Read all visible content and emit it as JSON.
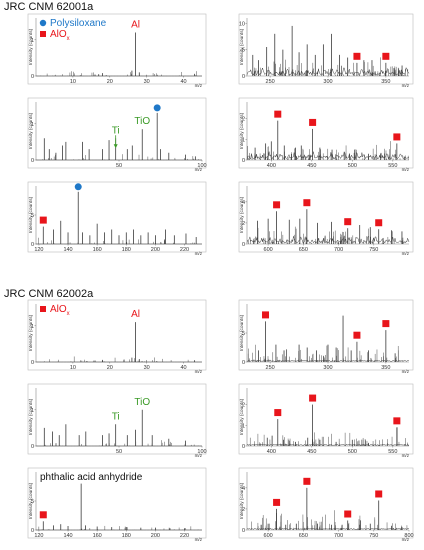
{
  "sections": [
    {
      "title": "JRC CNM 62001a"
    },
    {
      "title": "JRC CNM 62002a"
    }
  ],
  "colors": {
    "red": "#e8151b",
    "blue": "#1f78c8",
    "green": "#3a9a26",
    "line": "#3a3a3a"
  },
  "axis_text": {
    "ylabel": "Intensity (counts)",
    "xunit": "m/z"
  },
  "chart_data": [
    {
      "section": 0,
      "row": 0,
      "col": 0,
      "type": "line",
      "xlim": [
        0,
        45
      ],
      "ylim": [
        0,
        1.6
      ],
      "xticks": [
        10,
        20,
        30,
        40
      ],
      "yticks": [
        0,
        1
      ],
      "annotations": [
        {
          "text": "Polysiloxane",
          "color": "blue",
          "marker": "circle",
          "legend": true
        },
        {
          "text": "AlO",
          "sub": "x",
          "color": "red",
          "marker": "square",
          "legend": true
        },
        {
          "text": "Al",
          "color": "red",
          "x": 27
        }
      ],
      "peaks": [
        [
          27,
          1.2
        ],
        [
          26,
          0.15
        ],
        [
          28,
          0.1
        ],
        [
          16,
          0.04
        ],
        [
          17,
          0.05
        ],
        [
          18,
          0.08
        ],
        [
          43,
          0.06
        ],
        [
          12,
          0.02
        ]
      ]
    },
    {
      "section": 0,
      "row": 0,
      "col": 1,
      "type": "line",
      "xlim": [
        230,
        370
      ],
      "ylim": [
        0,
        11
      ],
      "xticks": [
        250,
        300,
        350
      ],
      "yticks": [
        0,
        5,
        10
      ],
      "annotations": [
        {
          "marker": "square",
          "color": "red",
          "x": 325
        },
        {
          "marker": "square",
          "color": "red",
          "x": 350
        }
      ],
      "peaks": [
        [
          235,
          4
        ],
        [
          240,
          3
        ],
        [
          247,
          5.5
        ],
        [
          254,
          8
        ],
        [
          261,
          5
        ],
        [
          269,
          9.5
        ],
        [
          275,
          4.5
        ],
        [
          282,
          6
        ],
        [
          289,
          4
        ],
        [
          296,
          6
        ],
        [
          303,
          8
        ],
        [
          310,
          4
        ],
        [
          317,
          3.5
        ],
        [
          325,
          2.5
        ],
        [
          331,
          3
        ],
        [
          338,
          3
        ],
        [
          350,
          2.5
        ],
        [
          357,
          1.5
        ],
        [
          364,
          2
        ]
      ]
    },
    {
      "section": 0,
      "row": 1,
      "col": 0,
      "type": "line",
      "xlim": [
        0,
        100
      ],
      "ylim": [
        0,
        1.6
      ],
      "xticks": [
        50,
        100
      ],
      "yticks": [
        0,
        1
      ],
      "annotations": [
        {
          "text": "Ti",
          "color": "green",
          "x": 48,
          "arrow": true
        },
        {
          "text": "TiO",
          "color": "green",
          "x": 64
        },
        {
          "marker": "circle",
          "color": "blue",
          "x": 73
        }
      ],
      "peaks": [
        [
          5,
          0.6
        ],
        [
          8,
          0.3
        ],
        [
          12,
          0.2
        ],
        [
          16,
          0.4
        ],
        [
          18,
          0.5
        ],
        [
          28,
          0.5
        ],
        [
          32,
          0.3
        ],
        [
          40,
          0.3
        ],
        [
          44,
          0.55
        ],
        [
          48,
          0.6
        ],
        [
          55,
          0.3
        ],
        [
          58,
          0.4
        ],
        [
          64,
          0.85
        ],
        [
          73,
          1.3
        ],
        [
          75,
          0.3
        ],
        [
          80,
          0.2
        ],
        [
          90,
          0.15
        ],
        [
          96,
          0.1
        ]
      ]
    },
    {
      "section": 0,
      "row": 1,
      "col": 1,
      "type": "line",
      "xlim": [
        370,
        570
      ],
      "ylim": [
        0,
        2.8
      ],
      "xticks": [
        400,
        450,
        500,
        550
      ],
      "yticks": [
        0,
        1,
        2
      ],
      "annotations": [
        {
          "marker": "square",
          "color": "red",
          "x": 408
        },
        {
          "marker": "square",
          "color": "red",
          "x": 451
        },
        {
          "marker": "square",
          "color": "red",
          "x": 555
        }
      ],
      "peaks": [
        [
          380,
          0.6
        ],
        [
          393,
          0.8
        ],
        [
          400,
          0.9
        ],
        [
          408,
          1.9
        ],
        [
          416,
          0.7
        ],
        [
          430,
          0.6
        ],
        [
          437,
          0.7
        ],
        [
          451,
          1.5
        ],
        [
          460,
          0.6
        ],
        [
          475,
          0.5
        ],
        [
          490,
          0.4
        ],
        [
          503,
          0.5
        ],
        [
          520,
          0.3
        ],
        [
          535,
          0.3
        ],
        [
          555,
          0.8
        ]
      ]
    },
    {
      "section": 0,
      "row": 2,
      "col": 0,
      "type": "line",
      "xlim": [
        118,
        232
      ],
      "ylim": [
        0,
        10
      ],
      "xticks": [
        120,
        140,
        160,
        180,
        200,
        220
      ],
      "yticks": [
        0,
        5
      ],
      "annotations": [
        {
          "marker": "square",
          "color": "red",
          "x": 123
        },
        {
          "marker": "circle",
          "color": "blue",
          "x": 147
        }
      ],
      "peaks": [
        [
          123,
          3
        ],
        [
          130,
          2.5
        ],
        [
          135,
          4
        ],
        [
          140,
          2
        ],
        [
          147,
          9
        ],
        [
          150,
          2
        ],
        [
          155,
          1.5
        ],
        [
          160,
          3.5
        ],
        [
          165,
          2
        ],
        [
          170,
          2.5
        ],
        [
          175,
          1.5
        ],
        [
          180,
          2
        ],
        [
          185,
          2.5
        ],
        [
          190,
          1.5
        ],
        [
          195,
          2
        ],
        [
          200,
          1.5
        ],
        [
          207,
          2.5
        ],
        [
          213,
          1.5
        ],
        [
          221,
          1.8
        ],
        [
          228,
          1.2
        ]
      ]
    },
    {
      "section": 0,
      "row": 2,
      "col": 1,
      "type": "line",
      "xlim": [
        570,
        800
      ],
      "ylim": [
        0,
        5.5
      ],
      "xticks": [
        600,
        650,
        700,
        750
      ],
      "yticks": [
        0,
        2,
        4
      ],
      "annotations": [
        {
          "marker": "square",
          "color": "red",
          "x": 612
        },
        {
          "marker": "square",
          "color": "red",
          "x": 655
        },
        {
          "marker": "square",
          "color": "red",
          "x": 713
        },
        {
          "marker": "square",
          "color": "red",
          "x": 757
        }
      ],
      "peaks": [
        [
          585,
          2.2
        ],
        [
          600,
          2.4
        ],
        [
          612,
          3.1
        ],
        [
          630,
          2.3
        ],
        [
          645,
          2.4
        ],
        [
          655,
          3.3
        ],
        [
          670,
          2.0
        ],
        [
          690,
          2.1
        ],
        [
          713,
          1.5
        ],
        [
          730,
          1.8
        ],
        [
          745,
          1.6
        ],
        [
          757,
          1.4
        ],
        [
          775,
          1.3
        ],
        [
          790,
          1.2
        ]
      ]
    },
    {
      "section": 1,
      "row": 0,
      "col": 0,
      "type": "line",
      "xlim": [
        0,
        45
      ],
      "ylim": [
        0,
        1.6
      ],
      "xticks": [
        10,
        20,
        30,
        40
      ],
      "yticks": [
        0,
        1
      ],
      "annotations": [
        {
          "text": "AlO",
          "sub": "x",
          "color": "red",
          "marker": "square",
          "legend": true
        },
        {
          "text": "Al",
          "color": "red",
          "x": 27
        }
      ],
      "peaks": [
        [
          27,
          1.1
        ],
        [
          26,
          0.12
        ],
        [
          28,
          0.08
        ],
        [
          16,
          0.04
        ],
        [
          18,
          0.06
        ],
        [
          43,
          0.05
        ]
      ]
    },
    {
      "section": 1,
      "row": 0,
      "col": 1,
      "type": "line",
      "xlim": [
        230,
        370
      ],
      "ylim": [
        0,
        10
      ],
      "xticks": [
        250,
        300,
        350
      ],
      "yticks": [
        0,
        5
      ],
      "annotations": [
        {
          "marker": "square",
          "color": "red",
          "x": 246
        },
        {
          "marker": "square",
          "color": "red",
          "x": 325
        },
        {
          "marker": "square",
          "color": "red",
          "x": 350
        }
      ],
      "peaks": [
        [
          240,
          2
        ],
        [
          246,
          7
        ],
        [
          255,
          3
        ],
        [
          262,
          2
        ],
        [
          275,
          3
        ],
        [
          282,
          2.5
        ],
        [
          290,
          2
        ],
        [
          300,
          3
        ],
        [
          307,
          2.5
        ],
        [
          313,
          8
        ],
        [
          320,
          2
        ],
        [
          325,
          3.5
        ],
        [
          335,
          2
        ],
        [
          350,
          5.5
        ],
        [
          358,
          1.5
        ]
      ]
    },
    {
      "section": 1,
      "row": 1,
      "col": 0,
      "type": "line",
      "xlim": [
        0,
        100
      ],
      "ylim": [
        0,
        1.6
      ],
      "xticks": [
        50,
        100
      ],
      "yticks": [
        0,
        1
      ],
      "annotations": [
        {
          "text": "Ti",
          "color": "green",
          "x": 48
        },
        {
          "text": "TiO",
          "color": "green",
          "x": 64
        }
      ],
      "peaks": [
        [
          5,
          0.5
        ],
        [
          10,
          0.4
        ],
        [
          14,
          0.3
        ],
        [
          18,
          0.6
        ],
        [
          26,
          0.3
        ],
        [
          30,
          0.4
        ],
        [
          40,
          0.3
        ],
        [
          44,
          0.35
        ],
        [
          48,
          0.6
        ],
        [
          55,
          0.3
        ],
        [
          60,
          0.45
        ],
        [
          64,
          1.0
        ],
        [
          70,
          0.3
        ],
        [
          80,
          0.2
        ],
        [
          90,
          0.15
        ]
      ]
    },
    {
      "section": 1,
      "row": 1,
      "col": 1,
      "type": "line",
      "xlim": [
        370,
        570
      ],
      "ylim": [
        0,
        2.8
      ],
      "xticks": [
        400,
        450,
        500,
        550
      ],
      "yticks": [
        0,
        1,
        2
      ],
      "annotations": [
        {
          "marker": "square",
          "color": "red",
          "x": 408
        },
        {
          "marker": "square",
          "color": "red",
          "x": 451
        },
        {
          "marker": "square",
          "color": "red",
          "x": 555
        }
      ],
      "peaks": [
        [
          395,
          0.4
        ],
        [
          401,
          0.5
        ],
        [
          408,
          1.3
        ],
        [
          415,
          0.3
        ],
        [
          430,
          0.2
        ],
        [
          445,
          0.4
        ],
        [
          451,
          2.0
        ],
        [
          460,
          0.3
        ],
        [
          480,
          0.2
        ],
        [
          500,
          0.3
        ],
        [
          520,
          0.15
        ],
        [
          555,
          0.9
        ]
      ]
    },
    {
      "section": 1,
      "row": 2,
      "col": 0,
      "type": "line",
      "xlim": [
        118,
        232
      ],
      "ylim": [
        0,
        10
      ],
      "xticks": [
        120,
        140,
        160,
        180,
        200,
        220
      ],
      "yticks": [
        0,
        5
      ],
      "annotations": [
        {
          "text": "phthalic acid anhydride",
          "color": "black",
          "legend": true
        },
        {
          "marker": "square",
          "color": "red",
          "x": 123
        }
      ],
      "peaks": [
        [
          123,
          1.5
        ],
        [
          130,
          0.8
        ],
        [
          135,
          1
        ],
        [
          140,
          0.7
        ],
        [
          149,
          8
        ],
        [
          152,
          0.8
        ],
        [
          160,
          0.6
        ],
        [
          170,
          0.5
        ],
        [
          180,
          0.5
        ],
        [
          190,
          0.4
        ],
        [
          200,
          0.4
        ],
        [
          210,
          0.3
        ],
        [
          220,
          0.3
        ]
      ]
    },
    {
      "section": 1,
      "row": 2,
      "col": 1,
      "type": "line",
      "xlim": [
        570,
        800
      ],
      "ylim": [
        0,
        5.5
      ],
      "xticks": [
        600,
        650,
        700,
        750,
        800
      ],
      "yticks": [
        0,
        2,
        4
      ],
      "annotations": [
        {
          "marker": "square",
          "color": "red",
          "x": 612
        },
        {
          "marker": "square",
          "color": "red",
          "x": 655
        },
        {
          "marker": "square",
          "color": "red",
          "x": 713
        },
        {
          "marker": "square",
          "color": "red",
          "x": 757
        }
      ],
      "peaks": [
        [
          590,
          0.5
        ],
        [
          600,
          0.6
        ],
        [
          612,
          2.0
        ],
        [
          625,
          0.5
        ],
        [
          640,
          0.6
        ],
        [
          655,
          4.0
        ],
        [
          670,
          0.6
        ],
        [
          690,
          0.5
        ],
        [
          705,
          0.5
        ],
        [
          713,
          0.9
        ],
        [
          730,
          0.5
        ],
        [
          745,
          0.6
        ],
        [
          757,
          2.8
        ],
        [
          775,
          0.4
        ],
        [
          790,
          0.3
        ]
      ]
    }
  ]
}
